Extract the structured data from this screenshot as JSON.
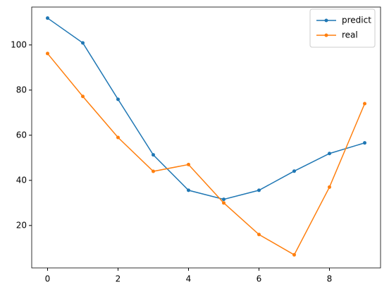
{
  "chart_data": {
    "type": "line",
    "x": [
      0,
      1,
      2,
      3,
      4,
      5,
      6,
      7,
      8,
      9
    ],
    "series": [
      {
        "name": "predict",
        "color": "#1f77b4",
        "values": [
          111.9,
          100.9,
          75.9,
          51.3,
          35.6,
          31.6,
          35.6,
          44.1,
          51.9,
          56.6
        ]
      },
      {
        "name": "real",
        "color": "#ff7f0e",
        "values": [
          96.2,
          77.2,
          59,
          44,
          47,
          30,
          16,
          7,
          37,
          74
        ]
      }
    ],
    "xlim": [
      -0.45,
      9.45
    ],
    "xticks": [
      0,
      2,
      4,
      6,
      8
    ],
    "ylim": [
      1.2,
      116.8
    ],
    "yticks": [
      20,
      40,
      60,
      80,
      100
    ],
    "legend": "upper right",
    "grid": false
  }
}
